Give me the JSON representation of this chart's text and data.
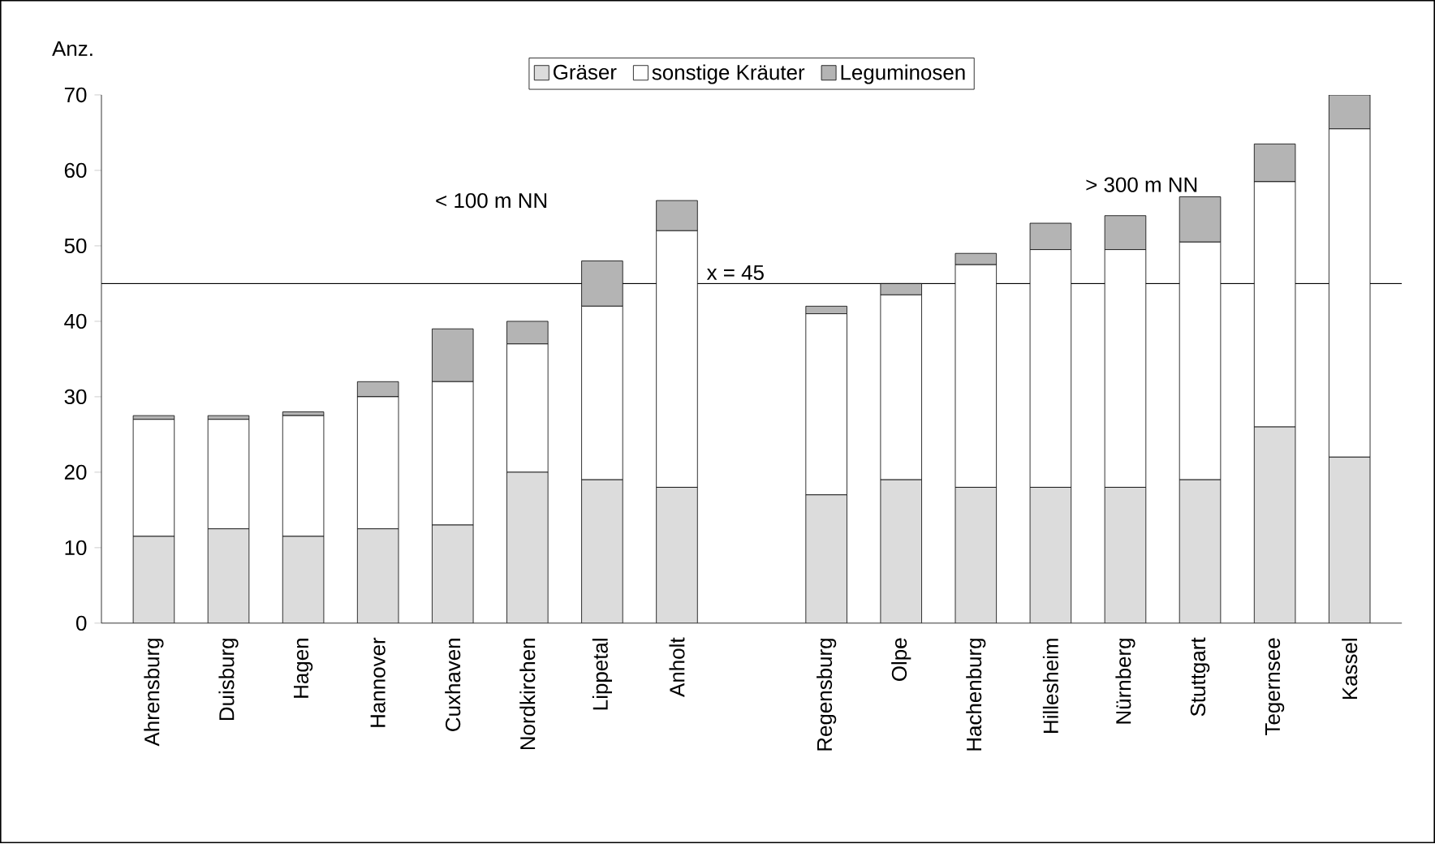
{
  "chart_data": {
    "type": "bar",
    "stacked": true,
    "ylabel": "Anz.",
    "categories": [
      "Ahrensburg",
      "Duisburg",
      "Hagen",
      "Hannover",
      "Cuxhaven",
      "Nordkirchen",
      "Lippetal",
      "Anholt",
      null,
      "Regensburg",
      "Olpe",
      "Hachenburg",
      "Hillesheim",
      "Nürnberg",
      "Stuttgart",
      "Tegernsee",
      "Kassel"
    ],
    "series": [
      {
        "name": "Gräser",
        "color": "#dcdcdc",
        "values": [
          11.5,
          12.5,
          11.5,
          12.5,
          13,
          20,
          19,
          18,
          null,
          17,
          19,
          18,
          18,
          18,
          19,
          26,
          22
        ]
      },
      {
        "name": "sonstige Kräuter",
        "color": "#ffffff",
        "values": [
          15.5,
          14.5,
          16,
          17.5,
          19,
          17,
          23,
          34,
          null,
          24,
          24.5,
          29.5,
          31.5,
          31.5,
          31.5,
          32.5,
          43.5
        ]
      },
      {
        "name": "Leguminosen",
        "color": "#b4b4b4",
        "values": [
          0.5,
          0.5,
          0.5,
          2,
          7,
          3,
          6,
          4,
          null,
          1,
          1.5,
          1.5,
          3.5,
          4.5,
          6,
          5,
          4.5
        ]
      }
    ],
    "ylim": [
      0,
      70
    ],
    "yticks": [
      0,
      10,
      20,
      30,
      40,
      50,
      60,
      70
    ],
    "ref_lines": [
      {
        "axis": "y",
        "value": 45,
        "label": "x  = 45",
        "color": "#000000"
      }
    ],
    "annotations": [
      "< 100 m NN",
      "> 300 m NN"
    ],
    "legend": "top"
  }
}
